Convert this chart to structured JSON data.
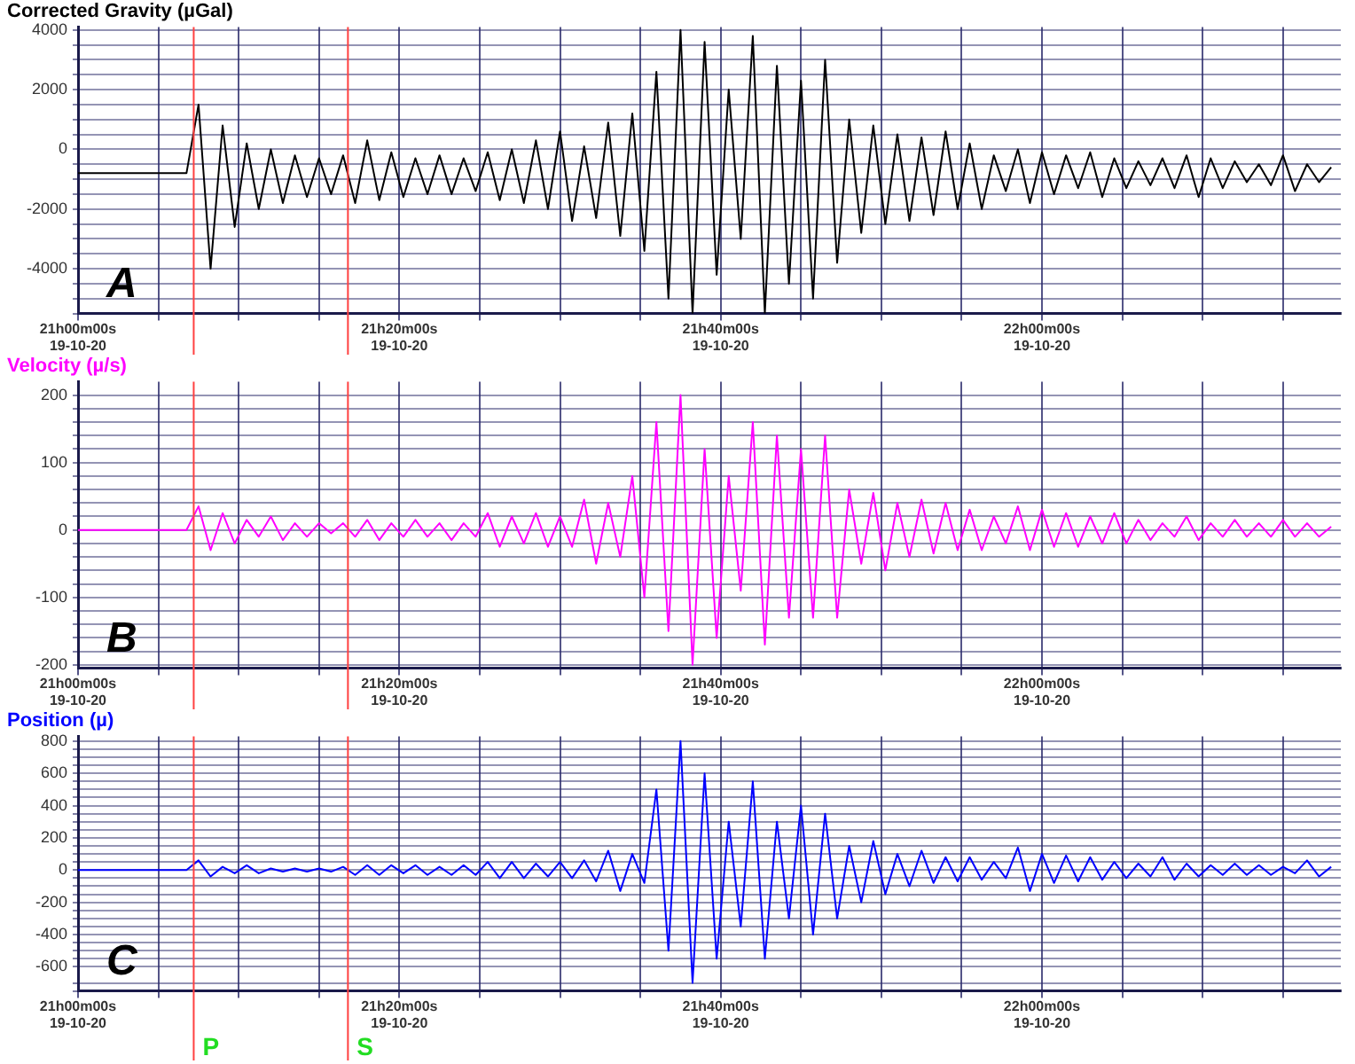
{
  "chart_data": [
    {
      "type": "line",
      "title": "Corrected Gravity (µGal)",
      "annotations": [
        "A"
      ],
      "x": [
        "--10-19T21:00:00",
        "--10-19T21:00:45",
        "--10-19T21:01:30",
        "--10-19T21:02:15",
        "--10-19T21:03:00",
        "--10-19T21:03:45",
        "--10-19T21:04:30",
        "--10-19T21:05:15",
        "--10-19T21:06:00",
        "--10-19T21:06:45",
        "--10-19T21:07:30",
        "--10-19T21:08:15",
        "--10-19T21:09:00",
        "--10-19T21:09:45",
        "--10-19T21:10:30",
        "--10-19T21:11:15",
        "--10-19T21:12:00",
        "--10-19T21:12:45",
        "--10-19T21:13:30",
        "--10-19T21:14:15",
        "--10-19T21:15:00",
        "--10-19T21:15:45",
        "--10-19T21:16:30",
        "--10-19T21:17:15",
        "--10-19T21:18:00",
        "--10-19T21:18:45",
        "--10-19T21:19:30",
        "--10-19T21:20:15",
        "--10-19T21:21:00",
        "--10-19T21:21:45",
        "--10-19T21:22:30",
        "--10-19T21:23:15",
        "--10-19T21:24:00",
        "--10-19T21:24:45",
        "--10-19T21:25:30",
        "--10-19T21:26:15",
        "--10-19T21:27:00",
        "--10-19T21:27:45",
        "--10-19T21:28:30",
        "--10-19T21:29:15",
        "--10-19T21:30:00",
        "--10-19T21:30:45",
        "--10-19T21:31:30",
        "--10-19T21:32:15",
        "--10-19T21:33:00",
        "--10-19T21:33:45",
        "--10-19T21:34:30",
        "--10-19T21:35:15",
        "--10-19T21:36:00",
        "--10-19T21:36:45",
        "--10-19T21:37:30",
        "--10-19T21:38:15",
        "--10-19T21:39:00",
        "--10-19T21:39:45",
        "--10-19T21:40:30",
        "--10-19T21:41:15",
        "--10-19T21:42:00",
        "--10-19T21:42:45",
        "--10-19T21:43:30",
        "--10-19T21:44:15",
        "--10-19T21:45:00",
        "--10-19T21:45:45",
        "--10-19T21:46:30",
        "--10-19T21:47:15",
        "--10-19T21:48:00",
        "--10-19T21:48:45",
        "--10-19T21:49:30",
        "--10-19T21:50:15",
        "--10-19T21:51:00",
        "--10-19T21:51:45",
        "--10-19T21:52:30",
        "--10-19T21:53:15",
        "--10-19T21:54:00",
        "--10-19T21:54:45",
        "--10-19T21:55:30",
        "--10-19T21:56:15",
        "--10-19T21:57:00",
        "--10-19T21:57:45",
        "--10-19T21:58:30",
        "--10-19T21:59:15",
        "--10-19T22:00:00",
        "--10-19T22:00:45",
        "--10-19T22:01:30",
        "--10-19T22:02:15",
        "--10-19T22:03:00",
        "--10-19T22:03:45",
        "--10-19T22:04:30",
        "--10-19T22:05:15",
        "--10-19T22:06:00",
        "--10-19T22:06:45",
        "--10-19T22:07:30",
        "--10-19T22:08:15",
        "--10-19T22:09:00",
        "--10-19T22:09:45",
        "--10-19T22:10:30",
        "--10-19T22:11:15",
        "--10-19T22:12:00",
        "--10-19T22:12:45",
        "--10-19T22:13:30",
        "--10-19T22:14:15",
        "--10-19T22:15:00",
        "--10-19T22:15:45",
        "--10-19T22:16:30",
        "--10-19T22:17:15",
        "--10-19T22:18:00"
      ],
      "series": [
        {
          "color": "#000000",
          "values": [
            -800,
            -800,
            -800,
            -800,
            -800,
            -800,
            -800,
            -800,
            -800,
            -800,
            1500,
            -4000,
            800,
            -2600,
            200,
            -2000,
            0,
            -1800,
            -200,
            -1600,
            -300,
            -1500,
            -200,
            -1800,
            300,
            -1700,
            -100,
            -1600,
            -300,
            -1500,
            -200,
            -1500,
            -300,
            -1400,
            -100,
            -1700,
            0,
            -1800,
            300,
            -2000,
            600,
            -2400,
            100,
            -2300,
            900,
            -2900,
            1200,
            -3400,
            2600,
            -5000,
            4000,
            -5500,
            3600,
            -4200,
            2000,
            -3000,
            3800,
            -5500,
            2800,
            -4500,
            2300,
            -5000,
            3000,
            -3800,
            1000,
            -2800,
            800,
            -2500,
            500,
            -2400,
            400,
            -2200,
            600,
            -2000,
            200,
            -2000,
            -200,
            -1400,
            0,
            -1800,
            -100,
            -1500,
            -200,
            -1300,
            -100,
            -1600,
            -300,
            -1300,
            -400,
            -1200,
            -300,
            -1300,
            -200,
            -1600,
            -300,
            -1300,
            -400,
            -1100,
            -500,
            -1200,
            -200,
            -1400,
            -500,
            -1100,
            -600
          ]
        }
      ],
      "xlim": [
        "--10-19T21:00:00",
        "--10-19T22:18:36"
      ],
      "xticks": [
        {
          "value": "--10-19T21:00",
          "label": "21h00m00s\n19-10-20"
        },
        {
          "value": "--10-19T21:05",
          "label": null
        },
        {
          "value": "--10-19T21:10",
          "label": null
        },
        {
          "value": "--10-19T21:15",
          "label": null
        },
        {
          "value": "--10-19T21:20",
          "label": "21h20m00s\n19-10-20"
        },
        {
          "value": "--10-19T21:25",
          "label": null
        },
        {
          "value": "--10-19T21:30",
          "label": null
        },
        {
          "value": "--10-19T21:35",
          "label": null
        },
        {
          "value": "--10-19T21:40",
          "label": "21h40m00s\n19-10-20"
        },
        {
          "value": "--10-19T21:45",
          "label": null
        },
        {
          "value": "--10-19T21:50",
          "label": null
        },
        {
          "value": "--10-19T21:55",
          "label": null
        },
        {
          "value": "--10-19T22:00",
          "label": "22h00m00s\n19-10-20"
        },
        {
          "value": "--10-19T22:05",
          "label": null
        },
        {
          "value": "--10-19T22:10",
          "label": null
        },
        {
          "value": "--10-19T22:15",
          "label": null
        }
      ],
      "ylim": [
        -5500,
        4100
      ],
      "yticks": [
        {
          "value": -5500,
          "label": null
        },
        {
          "value": -5000,
          "label": null
        },
        {
          "value": -4500,
          "label": null
        },
        -4000,
        {
          "value": -3500,
          "label": null
        },
        {
          "value": -3000,
          "label": null
        },
        {
          "value": -2500,
          "label": null
        },
        -2000,
        {
          "value": -1500,
          "label": null
        },
        {
          "value": -1000,
          "label": null
        },
        {
          "value": -500,
          "label": null
        },
        0,
        {
          "value": 500,
          "label": null
        },
        {
          "value": 1000,
          "label": null
        },
        {
          "value": 1500,
          "label": null
        },
        2000,
        {
          "value": 2500,
          "label": null
        },
        {
          "value": 3000,
          "label": null
        },
        {
          "value": 3500,
          "label": null
        },
        4000
      ],
      "ref_lines": [
        {
          "axis": "x",
          "value": "--10-19T21:07:12",
          "color": "#ff4040"
        },
        {
          "axis": "x",
          "value": "--10-19T21:16:48",
          "color": "#ff4040"
        }
      ],
      "grid": true,
      "legend": false,
      "marker": "none",
      "line_style": "solid"
    },
    {
      "type": "line",
      "title": "Velocity (µ/s)",
      "annotations": [
        "B"
      ],
      "x": [
        "--10-19T21:00:00",
        "--10-19T21:00:45",
        "--10-19T21:01:30",
        "--10-19T21:02:15",
        "--10-19T21:03:00",
        "--10-19T21:03:45",
        "--10-19T21:04:30",
        "--10-19T21:05:15",
        "--10-19T21:06:00",
        "--10-19T21:06:45",
        "--10-19T21:07:30",
        "--10-19T21:08:15",
        "--10-19T21:09:00",
        "--10-19T21:09:45",
        "--10-19T21:10:30",
        "--10-19T21:11:15",
        "--10-19T21:12:00",
        "--10-19T21:12:45",
        "--10-19T21:13:30",
        "--10-19T21:14:15",
        "--10-19T21:15:00",
        "--10-19T21:15:45",
        "--10-19T21:16:30",
        "--10-19T21:17:15",
        "--10-19T21:18:00",
        "--10-19T21:18:45",
        "--10-19T21:19:30",
        "--10-19T21:20:15",
        "--10-19T21:21:00",
        "--10-19T21:21:45",
        "--10-19T21:22:30",
        "--10-19T21:23:15",
        "--10-19T21:24:00",
        "--10-19T21:24:45",
        "--10-19T21:25:30",
        "--10-19T21:26:15",
        "--10-19T21:27:00",
        "--10-19T21:27:45",
        "--10-19T21:28:30",
        "--10-19T21:29:15",
        "--10-19T21:30:00",
        "--10-19T21:30:45",
        "--10-19T21:31:30",
        "--10-19T21:32:15",
        "--10-19T21:33:00",
        "--10-19T21:33:45",
        "--10-19T21:34:30",
        "--10-19T21:35:15",
        "--10-19T21:36:00",
        "--10-19T21:36:45",
        "--10-19T21:37:30",
        "--10-19T21:38:15",
        "--10-19T21:39:00",
        "--10-19T21:39:45",
        "--10-19T21:40:30",
        "--10-19T21:41:15",
        "--10-19T21:42:00",
        "--10-19T21:42:45",
        "--10-19T21:43:30",
        "--10-19T21:44:15",
        "--10-19T21:45:00",
        "--10-19T21:45:45",
        "--10-19T21:46:30",
        "--10-19T21:47:15",
        "--10-19T21:48:00",
        "--10-19T21:48:45",
        "--10-19T21:49:30",
        "--10-19T21:50:15",
        "--10-19T21:51:00",
        "--10-19T21:51:45",
        "--10-19T21:52:30",
        "--10-19T21:53:15",
        "--10-19T21:54:00",
        "--10-19T21:54:45",
        "--10-19T21:55:30",
        "--10-19T21:56:15",
        "--10-19T21:57:00",
        "--10-19T21:57:45",
        "--10-19T21:58:30",
        "--10-19T21:59:15",
        "--10-19T22:00:00",
        "--10-19T22:00:45",
        "--10-19T22:01:30",
        "--10-19T22:02:15",
        "--10-19T22:03:00",
        "--10-19T22:03:45",
        "--10-19T22:04:30",
        "--10-19T22:05:15",
        "--10-19T22:06:00",
        "--10-19T22:06:45",
        "--10-19T22:07:30",
        "--10-19T22:08:15",
        "--10-19T22:09:00",
        "--10-19T22:09:45",
        "--10-19T22:10:30",
        "--10-19T22:11:15",
        "--10-19T22:12:00",
        "--10-19T22:12:45",
        "--10-19T22:13:30",
        "--10-19T22:14:15",
        "--10-19T22:15:00",
        "--10-19T22:15:45",
        "--10-19T22:16:30",
        "--10-19T22:17:15",
        "--10-19T22:18:00"
      ],
      "series": [
        {
          "color": "#ff00ff",
          "values": [
            0,
            0,
            0,
            0,
            0,
            0,
            0,
            0,
            0,
            0,
            35,
            -30,
            25,
            -20,
            15,
            -10,
            20,
            -15,
            10,
            -10,
            10,
            -5,
            10,
            -10,
            15,
            -15,
            10,
            -10,
            15,
            -10,
            10,
            -15,
            10,
            -10,
            25,
            -25,
            20,
            -20,
            25,
            -25,
            20,
            -25,
            45,
            -50,
            40,
            -40,
            80,
            -100,
            160,
            -150,
            200,
            -200,
            120,
            -160,
            80,
            -90,
            160,
            -170,
            140,
            -130,
            120,
            -130,
            140,
            -130,
            60,
            -50,
            55,
            -60,
            40,
            -40,
            45,
            -35,
            40,
            -30,
            30,
            -30,
            20,
            -20,
            35,
            -30,
            30,
            -25,
            25,
            -25,
            20,
            -20,
            25,
            -20,
            15,
            -15,
            10,
            -10,
            20,
            -15,
            10,
            -10,
            15,
            -10,
            10,
            -10,
            15,
            -10,
            10,
            -10,
            5
          ]
        }
      ],
      "xlim": [
        "--10-19T21:00:00",
        "--10-19T22:18:36"
      ],
      "xticks": [
        {
          "value": "--10-19T21:00",
          "label": "21h00m00s\n19-10-20"
        },
        {
          "value": "--10-19T21:05",
          "label": null
        },
        {
          "value": "--10-19T21:10",
          "label": null
        },
        {
          "value": "--10-19T21:15",
          "label": null
        },
        {
          "value": "--10-19T21:20",
          "label": "21h20m00s\n19-10-20"
        },
        {
          "value": "--10-19T21:25",
          "label": null
        },
        {
          "value": "--10-19T21:30",
          "label": null
        },
        {
          "value": "--10-19T21:35",
          "label": null
        },
        {
          "value": "--10-19T21:40",
          "label": "21h40m00s\n19-10-20"
        },
        {
          "value": "--10-19T21:45",
          "label": null
        },
        {
          "value": "--10-19T21:50",
          "label": null
        },
        {
          "value": "--10-19T21:55",
          "label": null
        },
        {
          "value": "--10-19T22:00",
          "label": "22h00m00s\n19-10-20"
        },
        {
          "value": "--10-19T22:05",
          "label": null
        },
        {
          "value": "--10-19T22:10",
          "label": null
        },
        {
          "value": "--10-19T22:15",
          "label": null
        }
      ],
      "ylim": [
        -205,
        220
      ],
      "yticks": [
        -200,
        {
          "value": -180,
          "label": null
        },
        {
          "value": -160,
          "label": null
        },
        {
          "value": -140,
          "label": null
        },
        {
          "value": -120,
          "label": null
        },
        -100,
        {
          "value": -80,
          "label": null
        },
        {
          "value": -60,
          "label": null
        },
        {
          "value": -40,
          "label": null
        },
        {
          "value": -20,
          "label": null
        },
        0,
        {
          "value": 20,
          "label": null
        },
        {
          "value": 40,
          "label": null
        },
        {
          "value": 60,
          "label": null
        },
        {
          "value": 80,
          "label": null
        },
        100,
        {
          "value": 120,
          "label": null
        },
        {
          "value": 140,
          "label": null
        },
        {
          "value": 160,
          "label": null
        },
        {
          "value": 180,
          "label": null
        },
        200
      ],
      "ref_lines": [
        {
          "axis": "x",
          "value": "--10-19T21:07:12",
          "color": "#ff4040"
        },
        {
          "axis": "x",
          "value": "--10-19T21:16:48",
          "color": "#ff4040"
        }
      ],
      "grid": true,
      "legend": false,
      "marker": "none",
      "line_style": "solid"
    },
    {
      "type": "line",
      "title": "Position (µ)",
      "annotations": [
        "C"
      ],
      "x": [
        "--10-19T21:00:00",
        "--10-19T21:00:45",
        "--10-19T21:01:30",
        "--10-19T21:02:15",
        "--10-19T21:03:00",
        "--10-19T21:03:45",
        "--10-19T21:04:30",
        "--10-19T21:05:15",
        "--10-19T21:06:00",
        "--10-19T21:06:45",
        "--10-19T21:07:30",
        "--10-19T21:08:15",
        "--10-19T21:09:00",
        "--10-19T21:09:45",
        "--10-19T21:10:30",
        "--10-19T21:11:15",
        "--10-19T21:12:00",
        "--10-19T21:12:45",
        "--10-19T21:13:30",
        "--10-19T21:14:15",
        "--10-19T21:15:00",
        "--10-19T21:15:45",
        "--10-19T21:16:30",
        "--10-19T21:17:15",
        "--10-19T21:18:00",
        "--10-19T21:18:45",
        "--10-19T21:19:30",
        "--10-19T21:20:15",
        "--10-19T21:21:00",
        "--10-19T21:21:45",
        "--10-19T21:22:30",
        "--10-19T21:23:15",
        "--10-19T21:24:00",
        "--10-19T21:24:45",
        "--10-19T21:25:30",
        "--10-19T21:26:15",
        "--10-19T21:27:00",
        "--10-19T21:27:45",
        "--10-19T21:28:30",
        "--10-19T21:29:15",
        "--10-19T21:30:00",
        "--10-19T21:30:45",
        "--10-19T21:31:30",
        "--10-19T21:32:15",
        "--10-19T21:33:00",
        "--10-19T21:33:45",
        "--10-19T21:34:30",
        "--10-19T21:35:15",
        "--10-19T21:36:00",
        "--10-19T21:36:45",
        "--10-19T21:37:30",
        "--10-19T21:38:15",
        "--10-19T21:39:00",
        "--10-19T21:39:45",
        "--10-19T21:40:30",
        "--10-19T21:41:15",
        "--10-19T21:42:00",
        "--10-19T21:42:45",
        "--10-19T21:43:30",
        "--10-19T21:44:15",
        "--10-19T21:45:00",
        "--10-19T21:45:45",
        "--10-19T21:46:30",
        "--10-19T21:47:15",
        "--10-19T21:48:00",
        "--10-19T21:48:45",
        "--10-19T21:49:30",
        "--10-19T21:50:15",
        "--10-19T21:51:00",
        "--10-19T21:51:45",
        "--10-19T21:52:30",
        "--10-19T21:53:15",
        "--10-19T21:54:00",
        "--10-19T21:54:45",
        "--10-19T21:55:30",
        "--10-19T21:56:15",
        "--10-19T21:57:00",
        "--10-19T21:57:45",
        "--10-19T21:58:30",
        "--10-19T21:59:15",
        "--10-19T22:00:00",
        "--10-19T22:00:45",
        "--10-19T22:01:30",
        "--10-19T22:02:15",
        "--10-19T22:03:00",
        "--10-19T22:03:45",
        "--10-19T22:04:30",
        "--10-19T22:05:15",
        "--10-19T22:06:00",
        "--10-19T22:06:45",
        "--10-19T22:07:30",
        "--10-19T22:08:15",
        "--10-19T22:09:00",
        "--10-19T22:09:45",
        "--10-19T22:10:30",
        "--10-19T22:11:15",
        "--10-19T22:12:00",
        "--10-19T22:12:45",
        "--10-19T22:13:30",
        "--10-19T22:14:15",
        "--10-19T22:15:00",
        "--10-19T22:15:45",
        "--10-19T22:16:30",
        "--10-19T22:17:15",
        "--10-19T22:18:00"
      ],
      "series": [
        {
          "color": "#0000ff",
          "values": [
            0,
            0,
            0,
            0,
            0,
            0,
            0,
            0,
            0,
            0,
            60,
            -40,
            20,
            -20,
            30,
            -20,
            10,
            -10,
            10,
            -10,
            10,
            -10,
            20,
            -30,
            30,
            -30,
            30,
            -20,
            30,
            -30,
            20,
            -30,
            30,
            -30,
            50,
            -50,
            50,
            -50,
            40,
            -40,
            50,
            -50,
            60,
            -70,
            120,
            -130,
            100,
            -80,
            500,
            -500,
            800,
            -700,
            600,
            -550,
            300,
            -350,
            550,
            -550,
            300,
            -300,
            400,
            -400,
            350,
            -300,
            150,
            -200,
            180,
            -150,
            100,
            -100,
            120,
            -80,
            80,
            -70,
            80,
            -60,
            50,
            -50,
            140,
            -130,
            100,
            -80,
            90,
            -70,
            80,
            -60,
            50,
            -50,
            40,
            -40,
            80,
            -60,
            40,
            -40,
            30,
            -30,
            40,
            -30,
            30,
            -30,
            20,
            -20,
            60,
            -40,
            20
          ]
        }
      ],
      "xlim": [
        "--10-19T21:00:00",
        "--10-19T22:18:36"
      ],
      "xticks": [
        {
          "value": "--10-19T21:00",
          "label": "21h00m00s\n19-10-20"
        },
        {
          "value": "--10-19T21:05",
          "label": null
        },
        {
          "value": "--10-19T21:10",
          "label": null
        },
        {
          "value": "--10-19T21:15",
          "label": null
        },
        {
          "value": "--10-19T21:20",
          "label": "21h20m00s\n19-10-20"
        },
        {
          "value": "--10-19T21:25",
          "label": null
        },
        {
          "value": "--10-19T21:30",
          "label": null
        },
        {
          "value": "--10-19T21:35",
          "label": null
        },
        {
          "value": "--10-19T21:40",
          "label": "21h40m00s\n19-10-20"
        },
        {
          "value": "--10-19T21:45",
          "label": null
        },
        {
          "value": "--10-19T21:50",
          "label": null
        },
        {
          "value": "--10-19T21:55",
          "label": null
        },
        {
          "value": "--10-19T22:00",
          "label": "22h00m00s\n19-10-20"
        },
        {
          "value": "--10-19T22:05",
          "label": null
        },
        {
          "value": "--10-19T22:10",
          "label": null
        },
        {
          "value": "--10-19T22:15",
          "label": null
        }
      ],
      "ylim": [
        -750,
        830
      ],
      "yticks": [
        {
          "value": -750,
          "label": null
        },
        {
          "value": -700,
          "label": null
        },
        -600,
        {
          "value": -550,
          "label": null
        },
        {
          "value": -500,
          "label": null
        },
        {
          "value": -450,
          "label": null
        },
        -400,
        {
          "value": -350,
          "label": null
        },
        {
          "value": -300,
          "label": null
        },
        {
          "value": -250,
          "label": null
        },
        -200,
        {
          "value": -150,
          "label": null
        },
        {
          "value": -100,
          "label": null
        },
        {
          "value": -50,
          "label": null
        },
        0,
        {
          "value": 50,
          "label": null
        },
        {
          "value": 100,
          "label": null
        },
        {
          "value": 150,
          "label": null
        },
        200,
        {
          "value": 250,
          "label": null
        },
        {
          "value": 300,
          "label": null
        },
        {
          "value": 350,
          "label": null
        },
        400,
        {
          "value": 450,
          "label": null
        },
        {
          "value": 500,
          "label": null
        },
        {
          "value": 550,
          "label": null
        },
        600,
        {
          "value": 650,
          "label": null
        },
        {
          "value": 700,
          "label": null
        },
        {
          "value": 750,
          "label": null
        },
        800
      ],
      "ref_lines": [
        {
          "axis": "x",
          "value": "--10-19T21:07:12",
          "color": "#ff4040",
          "label": "P"
        },
        {
          "axis": "x",
          "value": "--10-19T21:16:48",
          "color": "#ff4040",
          "label": "S"
        }
      ],
      "grid": true,
      "legend": false,
      "marker": "none",
      "line_style": "solid"
    }
  ]
}
